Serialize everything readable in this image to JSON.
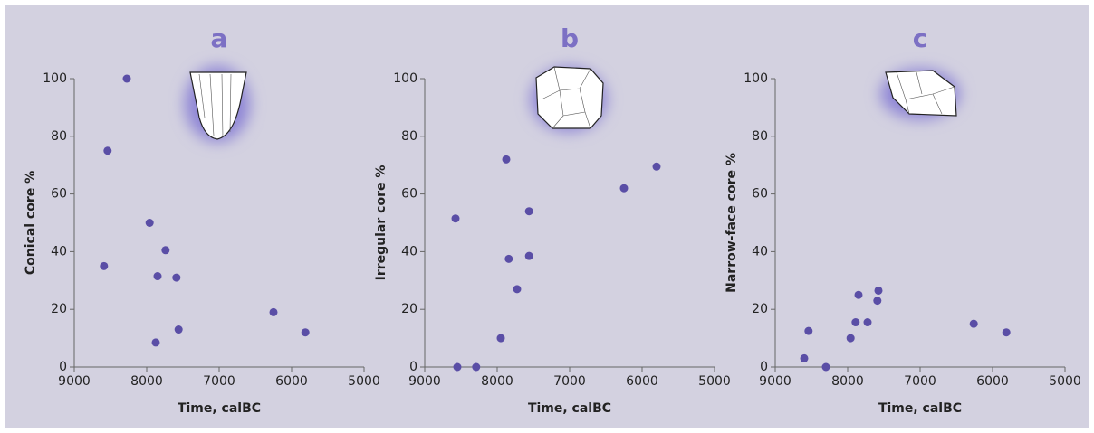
{
  "chart_data": [
    {
      "type": "scatter",
      "title": "a",
      "x_label": "Time, calBC",
      "y_label": "Conical core %",
      "color": "#5a4ea6",
      "xlim": [
        9000,
        5000
      ],
      "xticks": [
        9000,
        8000,
        7000,
        6000,
        5000
      ],
      "ylim": [
        0,
        100
      ],
      "yticks": [
        0,
        20,
        40,
        60,
        80,
        100
      ],
      "x": [
        8275,
        8540,
        8590,
        7960,
        7740,
        7850,
        7590,
        7875,
        7560,
        6250,
        5810
      ],
      "values": [
        100,
        75,
        35,
        50,
        40.5,
        31.5,
        31,
        8.5,
        13,
        19,
        12
      ]
    },
    {
      "type": "scatter",
      "title": "b",
      "x_label": "Time, calBC",
      "y_label": "Irregular core %",
      "color": "#5a4ea6",
      "xlim": [
        9000,
        5000
      ],
      "xticks": [
        9000,
        8000,
        7000,
        6000,
        5000
      ],
      "ylim": [
        0,
        100
      ],
      "yticks": [
        0,
        20,
        40,
        60,
        80,
        100
      ],
      "x": [
        8575,
        7875,
        7840,
        7560,
        7560,
        7725,
        7950,
        8550,
        8290,
        6250,
        5800
      ],
      "values": [
        51.5,
        72,
        37.5,
        54,
        38.5,
        27,
        10,
        0,
        0,
        62,
        69.5
      ]
    },
    {
      "type": "scatter",
      "title": "c",
      "x_label": "Time, calBC",
      "y_label": "Narrow-face core %",
      "color": "#5a4ea6",
      "xlim": [
        9000,
        5000
      ],
      "xticks": [
        9000,
        8000,
        7000,
        6000,
        5000
      ],
      "ylim": [
        0,
        100
      ],
      "yticks": [
        0,
        20,
        40,
        60,
        80,
        100
      ],
      "x": [
        8540,
        8600,
        8300,
        7850,
        7890,
        7725,
        7960,
        7575,
        7590,
        6260,
        5810
      ],
      "values": [
        12.5,
        3,
        0,
        25,
        15.5,
        15.5,
        10,
        26.5,
        23,
        15,
        12
      ]
    }
  ]
}
